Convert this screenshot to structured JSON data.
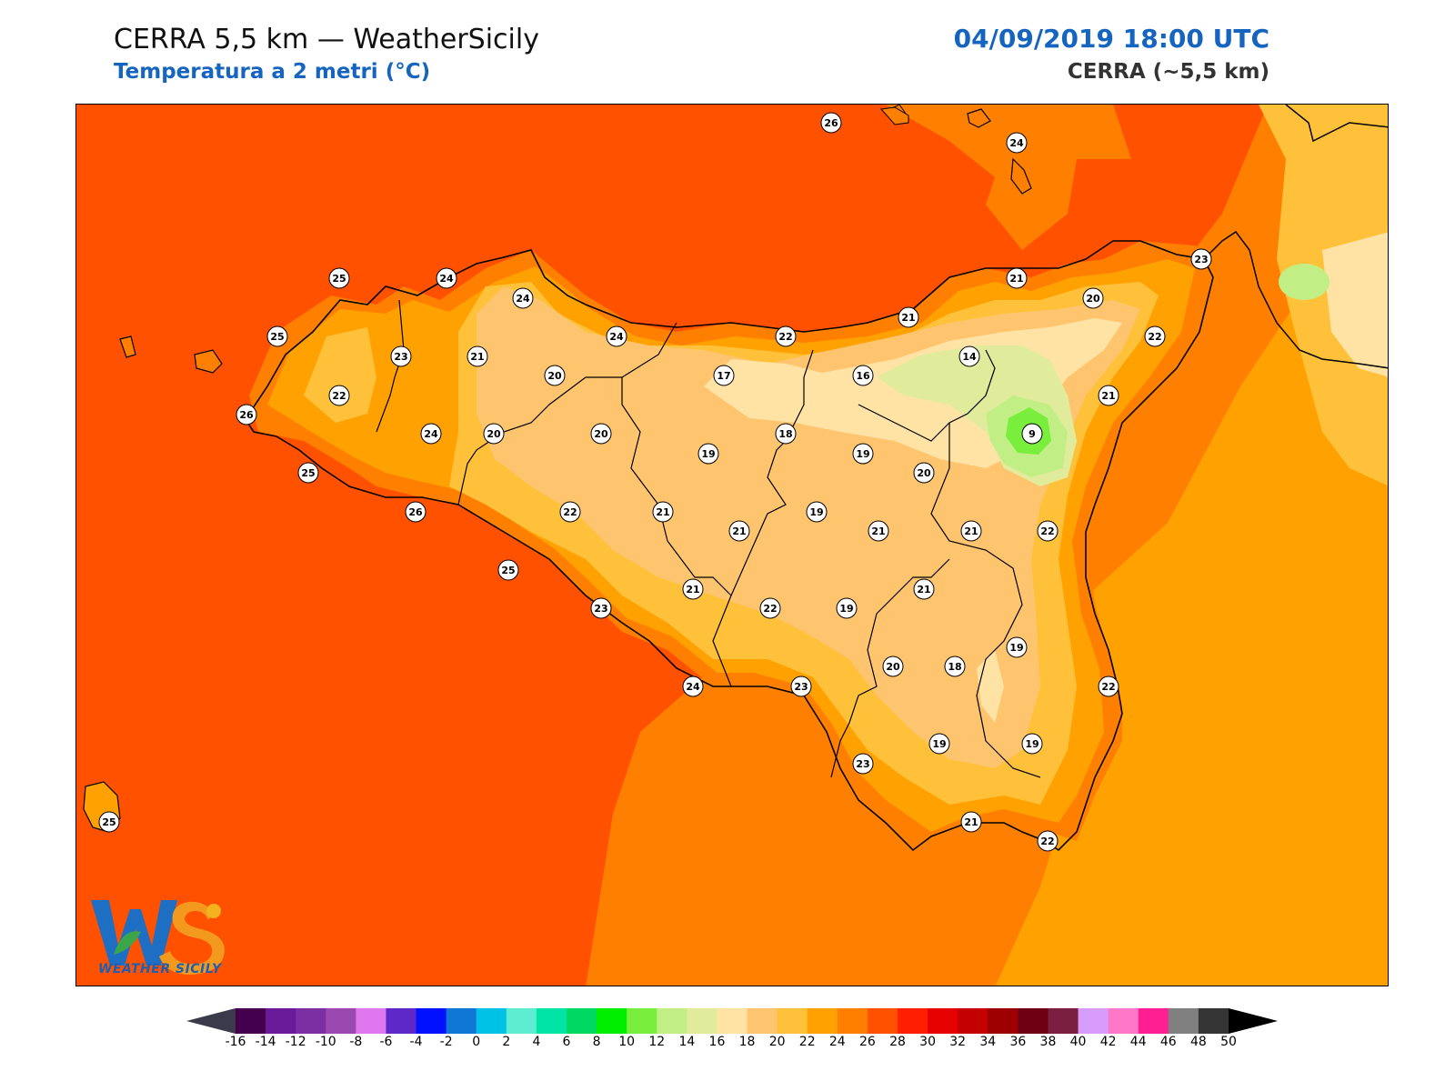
{
  "header": {
    "title": "CERRA 5,5 km — WeatherSicily",
    "subtitle": "Temperatura a 2 metri (°C)",
    "datetime": "04/09/2019 18:00 UTC",
    "model": "CERRA (~5,5 km)"
  },
  "logo": {
    "text": "WEATHER SICILY",
    "monogram": "WS"
  },
  "station_labels": [
    "26",
    "24",
    "25",
    "24",
    "24",
    "23",
    "25",
    "21",
    "20",
    "24",
    "22",
    "17",
    "16",
    "14",
    "22",
    "21",
    "21",
    "20",
    "22",
    "23",
    "21",
    "26",
    "22",
    "24",
    "20",
    "20",
    "19",
    "18",
    "19",
    "20",
    "9",
    "25",
    "26",
    "22",
    "21",
    "21",
    "19",
    "21",
    "21",
    "22",
    "25",
    "21",
    "23",
    "22",
    "19",
    "21",
    "19",
    "18",
    "20",
    "24",
    "23",
    "22",
    "23",
    "19",
    "19",
    "21",
    "22",
    "25"
  ],
  "colorbar": {
    "ticks": [
      "-16",
      "-14",
      "-12",
      "-10",
      "-8",
      "-6",
      "-4",
      "-2",
      "0",
      "2",
      "4",
      "6",
      "8",
      "10",
      "12",
      "14",
      "16",
      "18",
      "20",
      "22",
      "24",
      "26",
      "28",
      "30",
      "32",
      "34",
      "36",
      "38",
      "40",
      "42",
      "44",
      "46",
      "48",
      "50"
    ],
    "colors": [
      "#44004d",
      "#6a1b9a",
      "#7b2fa3",
      "#9a49b0",
      "#df77ee",
      "#5e28c9",
      "#0011ff",
      "#1077d6",
      "#00c2e6",
      "#5fedd1",
      "#00e5a5",
      "#00d961",
      "#00ee00",
      "#79ee3c",
      "#c1ef85",
      "#e0ec9c",
      "#ffe3a5",
      "#ffc56e",
      "#ffc13a",
      "#ffa100",
      "#ff8000",
      "#ff5100",
      "#ff1e00",
      "#e60000",
      "#c40000",
      "#9c0000",
      "#6f0014",
      "#7a1f3f",
      "#d89dfc",
      "#ff78c8",
      "#ff1f92",
      "#808080",
      "#353535"
    ],
    "underflow_color": "#3a3a4a",
    "overflow_color": "#000000"
  },
  "colors": {
    "sea": "#ff5100",
    "coast_warm": "#ff8000",
    "land_24": "#ffa100",
    "land_22": "#ffc13a",
    "land_20": "#ffc56e",
    "land_18": "#ffe3a5",
    "land_14": "#e0ec9c",
    "land_12": "#c1ef85",
    "peak_10": "#79ee3c",
    "title_blue": "#1565c0"
  }
}
